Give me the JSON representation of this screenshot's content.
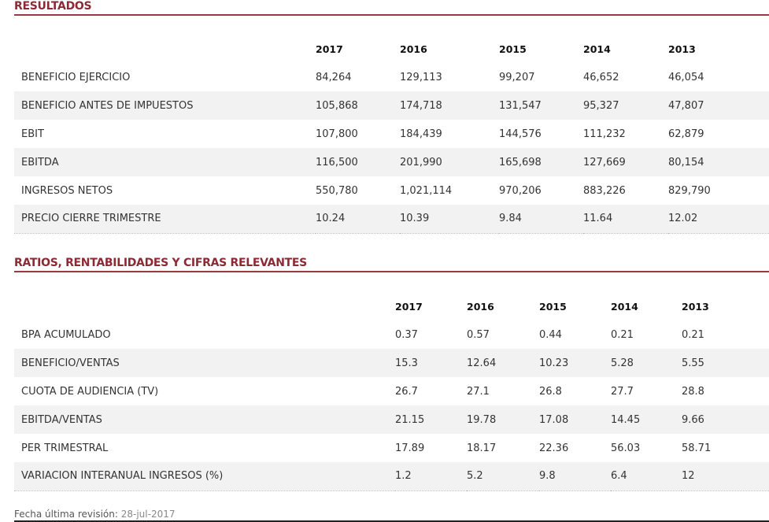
{
  "resultados": {
    "title": "RESULTADOS",
    "years": [
      "2017",
      "2016",
      "2015",
      "2014",
      "2013"
    ],
    "rows": [
      {
        "label": "BENEFICIO EJERCICIO",
        "values": [
          "84,264",
          "129,113",
          "99,207",
          "46,652",
          "46,054"
        ]
      },
      {
        "label": "BENEFICIO ANTES DE IMPUESTOS",
        "values": [
          "105,868",
          "174,718",
          "131,547",
          "95,327",
          "47,807"
        ]
      },
      {
        "label": "EBIT",
        "values": [
          "107,800",
          "184,439",
          "144,576",
          "111,232",
          "62,879"
        ]
      },
      {
        "label": "EBITDA",
        "values": [
          "116,500",
          "201,990",
          "165,698",
          "127,669",
          "80,154"
        ]
      },
      {
        "label": "INGRESOS NETOS",
        "values": [
          "550,780",
          "1,021,114",
          "970,206",
          "883,226",
          "829,790"
        ]
      },
      {
        "label": "PRECIO CIERRE TRIMESTRE",
        "values": [
          "10.24",
          "10.39",
          "9.84",
          "11.64",
          "12.02"
        ]
      }
    ]
  },
  "ratios": {
    "title": "RATIOS, RENTABILIDADES Y CIFRAS RELEVANTES",
    "years": [
      "2017",
      "2016",
      "2015",
      "2014",
      "2013"
    ],
    "rows": [
      {
        "label": "BPA ACUMULADO",
        "values": [
          "0.37",
          "0.57",
          "0.44",
          "0.21",
          "0.21"
        ]
      },
      {
        "label": "BENEFICIO/VENTAS",
        "values": [
          "15.3",
          "12.64",
          "10.23",
          "5.28",
          "5.55"
        ]
      },
      {
        "label": "CUOTA DE AUDIENCIA (TV)",
        "values": [
          "26.7",
          "27.1",
          "26.8",
          "27.7",
          "28.8"
        ]
      },
      {
        "label": "EBITDA/VENTAS",
        "values": [
          "21.15",
          "19.78",
          "17.08",
          "14.45",
          "9.66"
        ]
      },
      {
        "label": "PER TRIMESTRAL",
        "values": [
          "17.89",
          "18.17",
          "22.36",
          "56.03",
          "58.71"
        ]
      },
      {
        "label": "VARIACION INTERANUAL INGRESOS (%)",
        "values": [
          "1.2",
          "5.2",
          "9.8",
          "6.4",
          "12"
        ]
      }
    ]
  },
  "footer": {
    "label": "Fecha última revisión:",
    "value": "28-jul-2017"
  }
}
